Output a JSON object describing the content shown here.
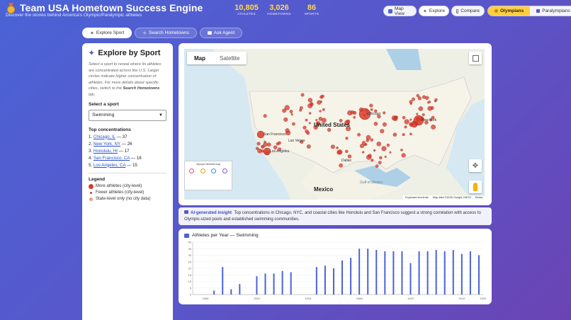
{
  "header": {
    "title": "Team USA Hometown Success Engine",
    "subtitle": "Discover the stories behind America's Olympic/Paralympic athletes",
    "stats": [
      {
        "value": "10,805",
        "label": "ATHLETES"
      },
      {
        "value": "3,026",
        "label": "HOMETOWNS"
      },
      {
        "value": "86",
        "label": "SPORTS"
      }
    ],
    "nav": [
      {
        "label": "Map View",
        "icon": "map-icon"
      },
      {
        "label": "Explore",
        "icon": "telescope-icon"
      },
      {
        "label": "Compare",
        "icon": "compare-icon"
      }
    ],
    "toggle": {
      "olympians": "Olympians",
      "paralympians": "Paralympians"
    }
  },
  "tabs": {
    "explore_sport": "Explore Sport",
    "search_hometowns": "Search Hometowns",
    "ask_agent": "Ask Agent"
  },
  "sidebar": {
    "title": "Explore by Sport",
    "description_pre": "Select a sport to reveal where its athletes are concentrated across the U.S. Larger circles indicate higher concentration of athletes. For more details about specific cities, switch to the ",
    "description_link": "Search Hometowns",
    "description_post": " tab.",
    "select_label": "Select a sport",
    "selected_sport": "Swimming",
    "concentrations_title": "Top concentrations",
    "concentrations": [
      {
        "rank": "1.",
        "city": "Chicago, IL",
        "count": "— 37"
      },
      {
        "rank": "2.",
        "city": "New York, NY",
        "count": "— 26"
      },
      {
        "rank": "3.",
        "city": "Honolulu, HI",
        "count": "— 17"
      },
      {
        "rank": "4.",
        "city": "San Francisco, CA",
        "count": "— 16"
      },
      {
        "rank": "5.",
        "city": "Los Angeles, CA",
        "count": "— 15"
      }
    ],
    "legend_title": "Legend",
    "legend": [
      "More athletes (city-level)",
      "Fewer athletes (city-level)",
      "State-level only (no city data)"
    ]
  },
  "map": {
    "type_map": "Map",
    "type_satellite": "Satellite",
    "label_us": "United States",
    "label_mexico": "Mexico",
    "label_gulf": "Gulf of Mexico",
    "cities": [
      {
        "name": "Chicago",
        "x": 255,
        "y": 92
      },
      {
        "name": "New York",
        "x": 331,
        "y": 101
      },
      {
        "name": "San Francisco",
        "x": 108,
        "y": 121
      },
      {
        "name": "Los Angeles",
        "x": 117,
        "y": 145
      },
      {
        "name": "Las Vegas",
        "x": 143,
        "y": 130
      },
      {
        "name": "Dallas",
        "x": 218,
        "y": 158
      }
    ],
    "inset_title": "Olympic Medalist map",
    "attribution": [
      "Keyboard shortcuts",
      "Map data ©2026 Google, INEGI",
      "Terms"
    ]
  },
  "insight": {
    "label": "AI-generated insight",
    "text": "Top concentrations in Chicago, NYC, and coastal cities like Honolulu and San Francisco suggest a strong correlation with access to Olympic-sized pools and established swimming communities."
  },
  "chart_data": {
    "type": "bar",
    "title": "Athletes per Year — Swimming",
    "ylim": [
      0,
      40
    ],
    "yticks": [
      0,
      5,
      10,
      15,
      20,
      25,
      30,
      35,
      40
    ],
    "xticks": [
      1896,
      1920,
      1944,
      1968,
      1992,
      2016,
      2026
    ],
    "xlim": [
      1890,
      2026
    ],
    "x": [
      1900,
      1904,
      1908,
      1912,
      1920,
      1924,
      1928,
      1932,
      1936,
      1948,
      1952,
      1956,
      1960,
      1964,
      1968,
      1972,
      1976,
      1980,
      1984,
      1988,
      1992,
      1996,
      2000,
      2004,
      2008,
      2012,
      2016,
      2020,
      2024
    ],
    "values": [
      3,
      21,
      4,
      8,
      14,
      16,
      16,
      18,
      17,
      21,
      22,
      20,
      26,
      28,
      35,
      35,
      34,
      33,
      33,
      33,
      24,
      33,
      33,
      34,
      33,
      34,
      31,
      33,
      30
    ],
    "color": "#4a63d6"
  }
}
